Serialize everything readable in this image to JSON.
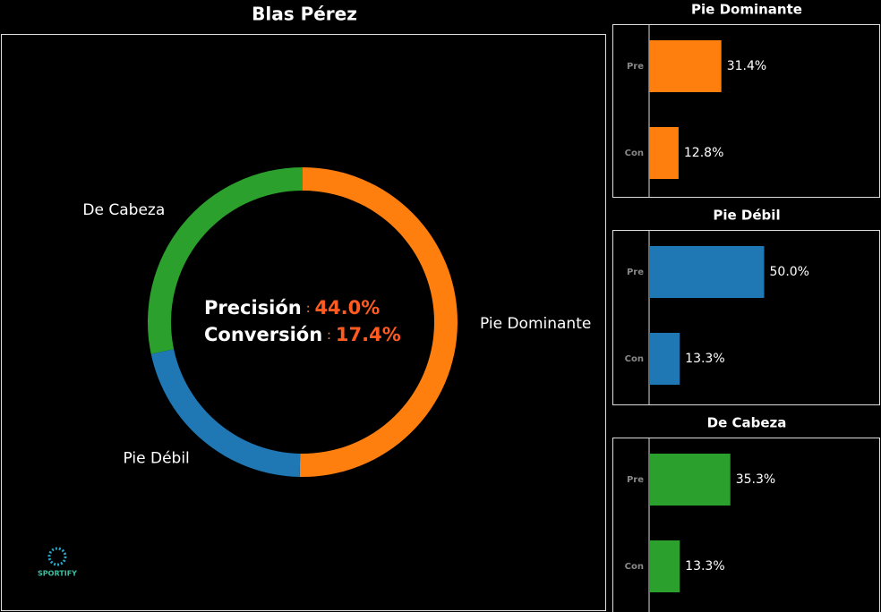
{
  "chart_data": [
    {
      "type": "pie",
      "title": "Blas Pérez",
      "categories": [
        "Pie Dominante",
        "Pie Débil",
        "De Cabeza"
      ],
      "values": [
        50.3,
        21.4,
        28.3
      ],
      "colors": [
        "#ff7f0e",
        "#1f77b4",
        "#2ca02c"
      ],
      "annotations": [
        {
          "label": "Precisión",
          "sep": ":",
          "value": "44.0%"
        },
        {
          "label": "Conversión",
          "sep": ":",
          "value": "17.4%"
        }
      ],
      "watermark": "SPORTIFY"
    },
    {
      "type": "hbar",
      "title": "Pie Dominante",
      "categories": [
        "Pre",
        "Con"
      ],
      "values": [
        31.4,
        12.8
      ],
      "value_labels": [
        "31.4%",
        "12.8%"
      ],
      "color": "#ff7f0e",
      "xlim": [
        0,
        100
      ]
    },
    {
      "type": "hbar",
      "title": "Pie Débil",
      "categories": [
        "Pre",
        "Con"
      ],
      "values": [
        50.0,
        13.3
      ],
      "value_labels": [
        "50.0%",
        "13.3%"
      ],
      "color": "#1f77b4",
      "xlim": [
        0,
        100
      ]
    },
    {
      "type": "hbar",
      "title": "De Cabeza",
      "categories": [
        "Pre",
        "Con"
      ],
      "values": [
        35.3,
        13.3
      ],
      "value_labels": [
        "35.3%",
        "13.3%"
      ],
      "color": "#2ca02c",
      "xlim": [
        0,
        100
      ]
    }
  ]
}
